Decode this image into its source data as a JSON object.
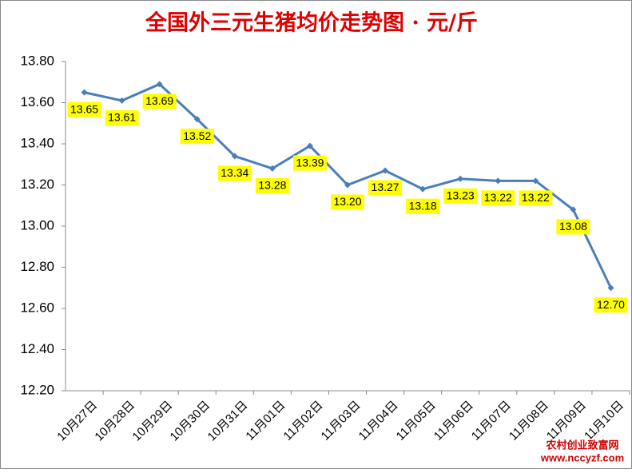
{
  "chart_data": {
    "type": "line",
    "title": "全国外三元生猪均价走势图 · 元/斤",
    "categories": [
      "10月27日",
      "10月28日",
      "10月29日",
      "10月30日",
      "10月31日",
      "11月01日",
      "11月02日",
      "11月03日",
      "11月04日",
      "11月05日",
      "11月06日",
      "11月07日",
      "11月08日",
      "11月09日",
      "11月10日"
    ],
    "series": [
      {
        "name": "外三元生猪均价",
        "color": "#4a7ebb",
        "values": [
          13.65,
          13.61,
          13.69,
          13.52,
          13.34,
          13.28,
          13.39,
          13.2,
          13.27,
          13.18,
          13.23,
          13.22,
          13.22,
          13.08,
          12.7
        ],
        "value_labels": [
          "13.65",
          "13.61",
          "13.69",
          "13.52",
          "13.34",
          "13.28",
          "13.39",
          "13.20",
          "13.27",
          "13.18",
          "13.23",
          "13.22",
          "13.22",
          "13.08",
          "12.70"
        ]
      }
    ],
    "ylim": [
      12.2,
      13.8
    ],
    "yticks": [
      {
        "value": 12.2,
        "label": "12.20"
      },
      {
        "value": 12.4,
        "label": "12.40"
      },
      {
        "value": 12.6,
        "label": "12.60"
      },
      {
        "value": 12.8,
        "label": "12.80"
      },
      {
        "value": 13.0,
        "label": "13.00"
      },
      {
        "value": 13.2,
        "label": "13.20"
      },
      {
        "value": 13.4,
        "label": "13.40"
      },
      {
        "value": 13.6,
        "label": "13.60"
      },
      {
        "value": 13.8,
        "label": "13.80"
      }
    ],
    "grid": false,
    "watermark": [
      "农村创业致富网",
      "www.nccyzf.com"
    ]
  }
}
